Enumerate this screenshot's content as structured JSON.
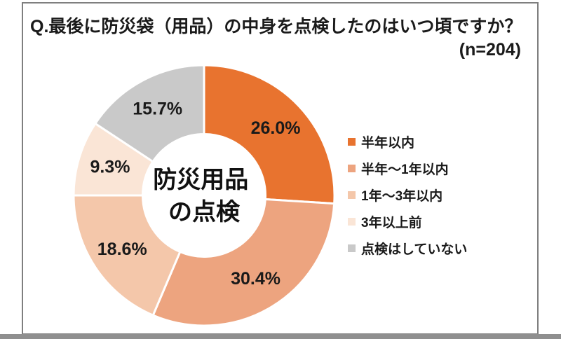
{
  "frame": {
    "title": "Q.最後に防災袋（用品）の中身を点検したのはいつ頃ですか？",
    "sample_size_label": "(n=204)"
  },
  "chart_data": {
    "type": "pie",
    "subtype": "donut",
    "title": "防災用品の点検",
    "center_label_lines": [
      "防災用品",
      "の点検"
    ],
    "sample_size": 204,
    "start_angle_deg": 0,
    "direction": "clockwise",
    "legend_position": "right",
    "value_unit": "%",
    "label_color": "#1A1A1A",
    "slice_gap_color": "#FFFFFF",
    "segments": [
      {
        "label": "半年以内",
        "value": 26.0,
        "display": "26.0%",
        "color": "#E8732F"
      },
      {
        "label": "半年～1年以内",
        "value": 30.4,
        "display": "30.4%",
        "color": "#EDA47F"
      },
      {
        "label": "1年～3年以内",
        "value": 18.6,
        "display": "18.6%",
        "color": "#F4C7AA"
      },
      {
        "label": "3年以上前",
        "value": 9.3,
        "display": "9.3%",
        "color": "#FAE5D6"
      },
      {
        "label": "点検はしていない",
        "value": 15.7,
        "display": "15.7%",
        "color": "#C9C9C9"
      }
    ]
  }
}
